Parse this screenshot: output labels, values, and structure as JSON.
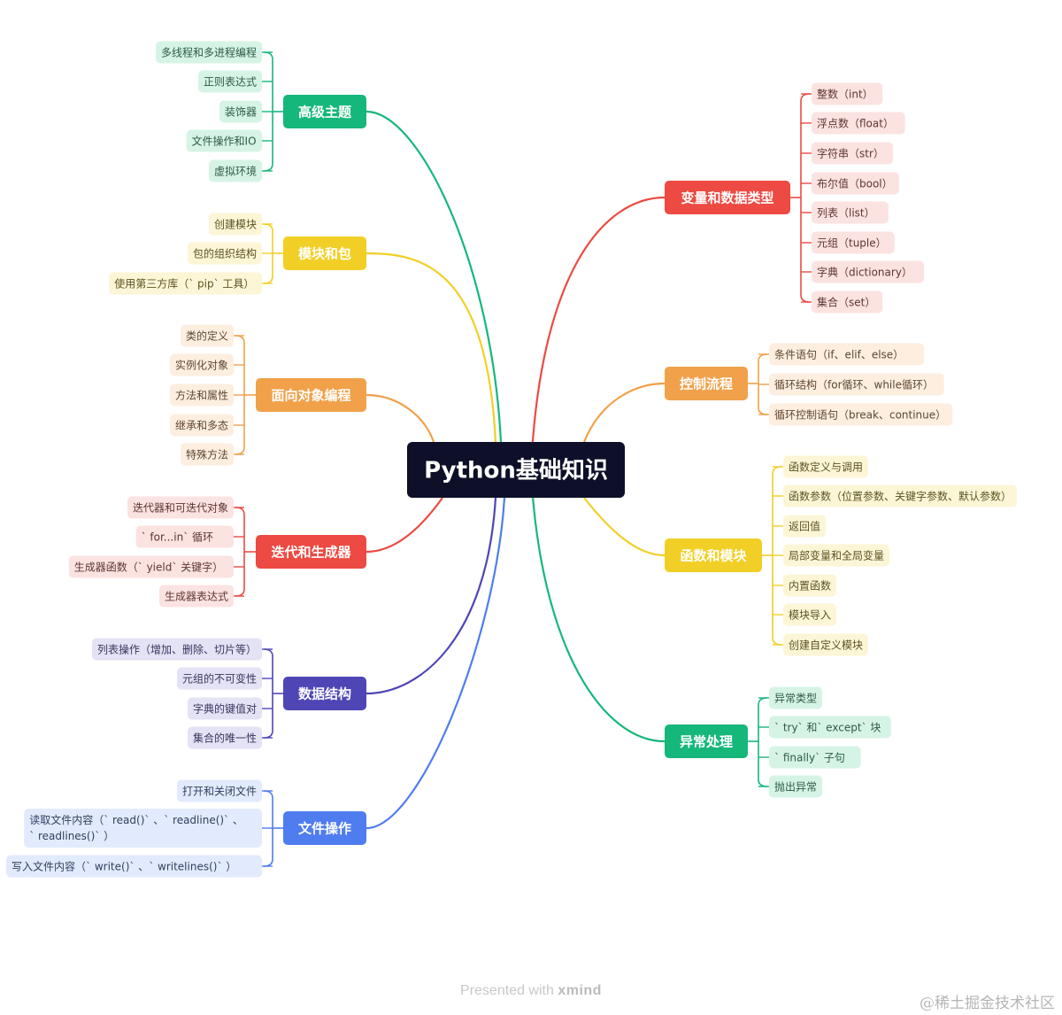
{
  "root": {
    "label": "Python基础知识"
  },
  "branches": [
    {
      "label": "高级主题",
      "color": "#16b77a",
      "bg": "#d6f4e6",
      "text": "#2e5a48",
      "children": [
        "多线程和多进程编程",
        "正则表达式",
        "装饰器",
        "文件操作和IO",
        "虚拟环境"
      ]
    },
    {
      "label": "模块和包",
      "color": "#f2cf26",
      "bg": "#fcf6d7",
      "text": "#5b5320",
      "children": [
        "创建模块",
        "包的组织结构",
        "使用第三方库（` pip` 工具）"
      ]
    },
    {
      "label": "面向对象编程",
      "color": "#f0a14a",
      "bg": "#fdeee0",
      "text": "#5d4630",
      "children": [
        "类的定义",
        "实例化对象",
        "方法和属性",
        "继承和多态",
        "特殊方法"
      ]
    },
    {
      "label": "迭代和生成器",
      "color": "#ec4a42",
      "bg": "#fbe3e1",
      "text": "#5e3432",
      "children": [
        "迭代器和可迭代对象",
        "` for...in` 循环",
        "生成器函数（` yield` 关键字）",
        "生成器表达式"
      ]
    },
    {
      "label": "数据结构",
      "color": "#4f46b6",
      "bg": "#e4e2f5",
      "text": "#38365e",
      "children": [
        "列表操作（增加、删除、切片等）",
        "元组的不可变性",
        "字典的键值对",
        "集合的唯一性"
      ]
    },
    {
      "label": "文件操作",
      "color": "#4f7cef",
      "bg": "#e2eafd",
      "text": "#32405e",
      "children": [
        "打开和关闭文件",
        "读取文件内容（` read()` 、` readline()` 、\n` readlines()` ）",
        "写入文件内容（` write()` 、` writelines()` ）"
      ]
    },
    {
      "label": "变量和数据类型",
      "color": "#ec4a42",
      "bg": "#fbe3e1",
      "text": "#5e3432",
      "children": [
        "整数（int）",
        "浮点数（float）",
        "字符串（str）",
        "布尔值（bool）",
        "列表（list）",
        "元组（tuple）",
        "字典（dictionary）",
        "集合（set）"
      ]
    },
    {
      "label": "控制流程",
      "color": "#f0a14a",
      "bg": "#fdeee0",
      "text": "#5d4630",
      "children": [
        "条件语句（if、elif、else）",
        "循环结构（for循环、while循环）",
        "循环控制语句（break、continue）"
      ]
    },
    {
      "label": "函数和模块",
      "color": "#f2cf26",
      "bg": "#fcf6d7",
      "text": "#5b5320",
      "children": [
        "函数定义与调用",
        "函数参数（位置参数、关键字参数、默认参数）",
        "返回值",
        "局部变量和全局变量",
        "内置函数",
        "模块导入",
        "创建自定义模块"
      ]
    },
    {
      "label": "异常处理",
      "color": "#16b77a",
      "bg": "#d6f4e6",
      "text": "#2e5a48",
      "children": [
        "异常类型",
        "` try` 和` except` 块",
        "` finally` 子句",
        "抛出异常"
      ]
    }
  ],
  "footer": {
    "prefix": "Presented with",
    "brand": "xmind"
  },
  "watermark": "@稀土掘金技术社区"
}
